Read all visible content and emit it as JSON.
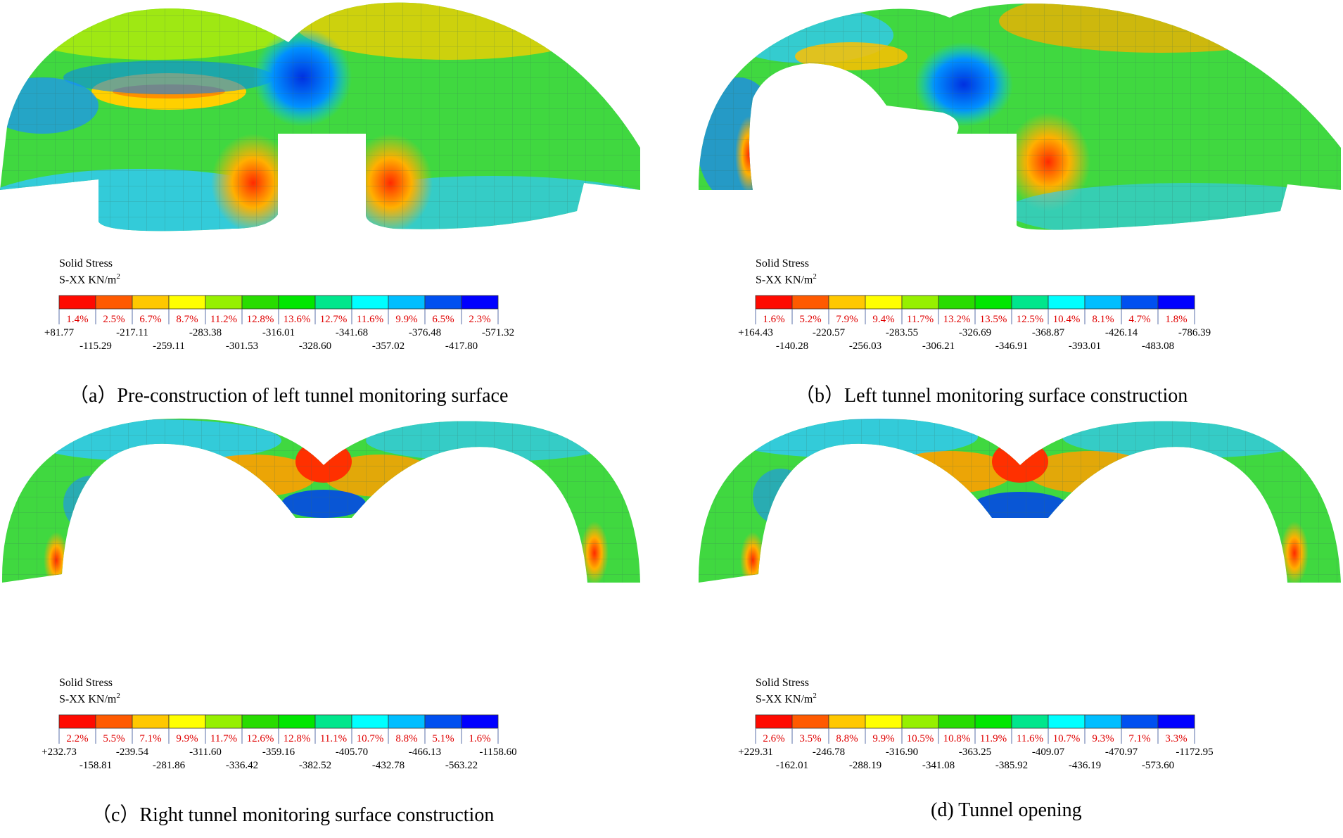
{
  "legend_colors": [
    "#ff0a00",
    "#ff5a00",
    "#ffc800",
    "#ffff00",
    "#96f000",
    "#28dc00",
    "#00e600",
    "#00e68c",
    "#00ffff",
    "#00beff",
    "#0050f0",
    "#0000ff"
  ],
  "panels": [
    {
      "caption": "（a）Pre-construction of left tunnel monitoring surface",
      "legend": {
        "title_line1": "Solid  Stress",
        "title_line2": "S-XX KN/m",
        "unit_superscript": "2",
        "percentages": [
          "1.4%",
          "2.5%",
          "6.7%",
          "8.7%",
          "11.2%",
          "12.8%",
          "13.6%",
          "12.7%",
          "11.6%",
          "9.9%",
          "6.5%",
          "2.3%"
        ],
        "boundaries": [
          "+81.77",
          "-115.29",
          "-217.11",
          "-259.11",
          "-283.38",
          "-301.53",
          "-316.01",
          "-328.60",
          "-341.68",
          "-357.02",
          "-376.48",
          "-417.80",
          "-571.32"
        ]
      }
    },
    {
      "caption": "（b）Left tunnel monitoring surface construction",
      "legend": {
        "title_line1": "Solid  Stress",
        "title_line2": "S-XX KN/m",
        "unit_superscript": "2",
        "percentages": [
          "1.6%",
          "5.2%",
          "7.9%",
          "9.4%",
          "11.7%",
          "13.2%",
          "13.5%",
          "12.5%",
          "10.4%",
          "8.1%",
          "4.7%",
          "1.8%"
        ],
        "boundaries": [
          "+164.43",
          "-140.28",
          "-220.57",
          "-256.03",
          "-283.55",
          "-306.21",
          "-326.69",
          "-346.91",
          "-368.87",
          "-393.01",
          "-426.14",
          "-483.08",
          "-786.39"
        ]
      }
    },
    {
      "caption": "（c）Right tunnel monitoring surface construction",
      "legend": {
        "title_line1": "Solid  Stress",
        "title_line2": "S-XX KN/m",
        "unit_superscript": "2",
        "percentages": [
          "2.2%",
          "5.5%",
          "7.1%",
          "9.9%",
          "11.7%",
          "12.6%",
          "12.8%",
          "11.1%",
          "10.7%",
          "8.8%",
          "5.1%",
          "1.6%"
        ],
        "boundaries": [
          "+232.73",
          "-158.81",
          "-239.54",
          "-281.86",
          "-311.60",
          "-336.42",
          "-359.16",
          "-382.52",
          "-405.70",
          "-432.78",
          "-466.13",
          "-563.22",
          "-1158.60"
        ]
      }
    },
    {
      "caption": "(d) Tunnel opening",
      "legend": {
        "title_line1": "Solid  Stress",
        "title_line2": "S-XX KN/m",
        "unit_superscript": "2",
        "percentages": [
          "2.6%",
          "3.5%",
          "8.8%",
          "9.9%",
          "10.5%",
          "10.8%",
          "11.9%",
          "11.6%",
          "10.7%",
          "9.3%",
          "7.1%",
          "3.3%"
        ],
        "boundaries": [
          "+229.31",
          "-162.01",
          "-246.78",
          "-288.19",
          "-316.90",
          "-341.08",
          "-363.25",
          "-385.92",
          "-409.07",
          "-436.19",
          "-470.97",
          "-573.60",
          "-1172.95"
        ]
      }
    }
  ]
}
